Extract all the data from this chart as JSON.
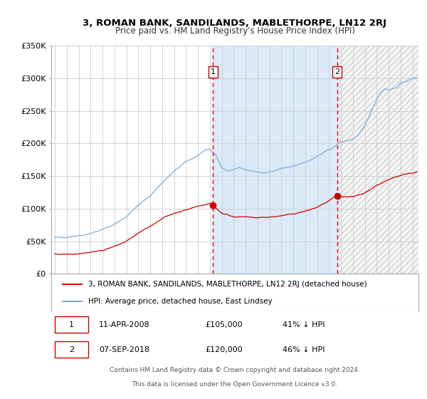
{
  "title": "3, ROMAN BANK, SANDILANDS, MABLETHORPE, LN12 2RJ",
  "subtitle": "Price paid vs. HM Land Registry's House Price Index (HPI)",
  "ylim": [
    0,
    350000
  ],
  "yticks": [
    0,
    50000,
    100000,
    150000,
    200000,
    250000,
    300000,
    350000
  ],
  "ytick_labels": [
    "£0",
    "£50K",
    "£100K",
    "£150K",
    "£200K",
    "£250K",
    "£300K",
    "£350K"
  ],
  "hpi_color": "#7aabdc",
  "property_color": "#cc0000",
  "bg_color": "#ffffff",
  "plot_bg_color": "#ffffff",
  "grid_color": "#cccccc",
  "shade_color": "#daeaf7",
  "hatch_color": "#e0e0e0",
  "vline_color": "#dd0000",
  "marker1_date": 2008.27,
  "marker1_value": 105000,
  "marker2_date": 2018.68,
  "marker2_value": 120000,
  "legend_property": "3, ROMAN BANK, SANDILANDS, MABLETHORPE, LN12 2RJ (detached house)",
  "legend_hpi": "HPI: Average price, detached house, East Lindsey",
  "annot1_label": "1",
  "annot1_date": "11-APR-2008",
  "annot1_price": "£105,000",
  "annot1_pct": "41% ↓ HPI",
  "annot2_label": "2",
  "annot2_date": "07-SEP-2018",
  "annot2_price": "£120,000",
  "annot2_pct": "46% ↓ HPI",
  "footer1": "Contains HM Land Registry data © Crown copyright and database right 2024.",
  "footer2": "This data is licensed under the Open Government Licence v3.0.",
  "xstart": 1994.7,
  "xend": 2025.5,
  "hpi_anchors_x": [
    1995.0,
    1996.0,
    1997.0,
    1998.0,
    1999.0,
    2000.0,
    2001.0,
    2002.0,
    2003.0,
    2004.0,
    2005.0,
    2006.0,
    2007.0,
    2007.5,
    2008.0,
    2008.5,
    2009.0,
    2009.5,
    2010.0,
    2010.5,
    2011.0,
    2011.5,
    2012.0,
    2012.5,
    2013.0,
    2013.5,
    2014.0,
    2014.5,
    2015.0,
    2015.5,
    2016.0,
    2016.5,
    2017.0,
    2017.5,
    2018.0,
    2018.5,
    2019.0,
    2019.5,
    2020.0,
    2020.5,
    2021.0,
    2021.5,
    2022.0,
    2022.3,
    2022.7,
    2023.0,
    2023.3,
    2023.7,
    2024.0,
    2024.5,
    2025.0,
    2025.4
  ],
  "hpi_anchors_y": [
    55000,
    57000,
    59000,
    62000,
    68000,
    76000,
    88000,
    105000,
    120000,
    140000,
    157000,
    172000,
    182000,
    188000,
    190000,
    183000,
    163000,
    158000,
    160000,
    163000,
    161000,
    158000,
    156000,
    155000,
    156000,
    158000,
    161000,
    163000,
    165000,
    169000,
    172000,
    175000,
    180000,
    185000,
    190000,
    196000,
    202000,
    205000,
    207000,
    212000,
    228000,
    248000,
    268000,
    278000,
    285000,
    282000,
    284000,
    287000,
    292000,
    296000,
    300000,
    302000
  ],
  "prop_anchors_x": [
    1995.0,
    1996.0,
    1997.0,
    1998.0,
    1999.0,
    2000.0,
    2001.0,
    2002.0,
    2003.0,
    2004.0,
    2005.0,
    2006.0,
    2007.0,
    2008.0,
    2008.27,
    2009.0,
    2010.0,
    2011.0,
    2012.0,
    2013.0,
    2014.0,
    2015.0,
    2016.0,
    2017.0,
    2018.0,
    2018.68,
    2019.0,
    2020.0,
    2021.0,
    2022.0,
    2023.0,
    2024.0,
    2025.0,
    2025.4
  ],
  "prop_anchors_y": [
    30000,
    30500,
    31000,
    33000,
    36000,
    42000,
    50000,
    62000,
    73000,
    85000,
    93000,
    98000,
    104000,
    108000,
    105000,
    93000,
    88000,
    87000,
    86000,
    87000,
    89000,
    92000,
    96000,
    102000,
    112000,
    120000,
    118000,
    118000,
    124000,
    136000,
    144000,
    152000,
    155000,
    156000
  ]
}
